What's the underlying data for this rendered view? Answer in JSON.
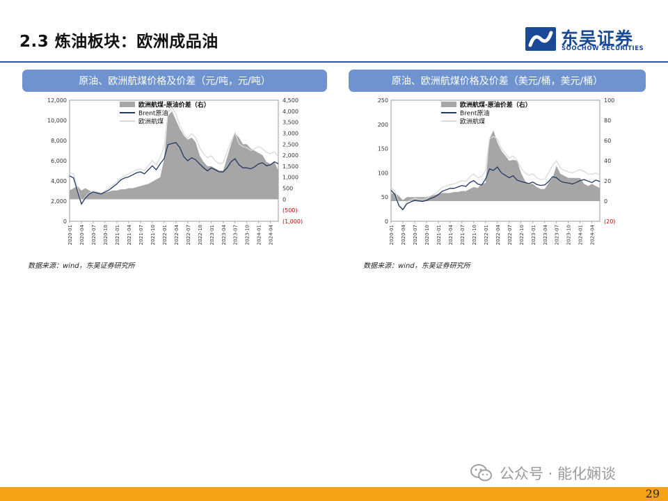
{
  "slide": {
    "title": "2.3 炼油板块：欧洲成品油",
    "page_number": "29"
  },
  "logo": {
    "name_cn": "东吴证券",
    "name_en": "SOOCHOW SECURITIES",
    "colors": {
      "primary": "#1a4a96"
    }
  },
  "watermark": {
    "text": "公众号 · 能化娴谈",
    "icon": "wechat-icon"
  },
  "colors": {
    "accent": "#2c5aa0",
    "panel_header": "#6f93cf",
    "footer": "#f5a216",
    "spread_area": "#a6a6a6",
    "brent_line": "#1f3864",
    "jet_line": "#d9d9d9",
    "negative_tick": "#c00000"
  },
  "panels": [
    {
      "header": "原油、欧洲航煤价格及价差（元/吨，元/吨）",
      "source": "数据来源：wind，东吴证券研究所"
    },
    {
      "header": "原油、欧洲航煤价格及价差（美元/桶，美元/桶）",
      "source": "数据来源：wind，东吴证券研究所"
    }
  ],
  "chart_data": [
    {
      "type": "line",
      "title": "原油、欧洲航煤价格及价差（元/吨，元/吨）",
      "x_ticks": [
        "2020-01",
        "2020-04",
        "2020-07",
        "2020-10",
        "2021-01",
        "2021-04",
        "2021-07",
        "2021-10",
        "2022-01",
        "2022-04",
        "2022-07",
        "2022-10",
        "2023-01",
        "2023-04",
        "2023-07",
        "2023-10",
        "2024-01",
        "2024-04"
      ],
      "left_axis": {
        "ylim": [
          0,
          12000
        ],
        "ticks": [
          "0",
          "2,000",
          "4,000",
          "6,000",
          "8,000",
          "10,000",
          "12,000"
        ]
      },
      "right_axis": {
        "ylim": [
          -1000,
          4500
        ],
        "ticks": [
          "(1,000)",
          "(500)",
          "0",
          "500",
          "1,000",
          "1,500",
          "2,000",
          "2,500",
          "3,000",
          "3,500",
          "4,000",
          "4,500"
        ]
      },
      "legend": [
        "欧洲航煤-原油价差（右）",
        "Brent原油",
        "欧洲航煤"
      ],
      "x_months": [
        0,
        1,
        2,
        3,
        4,
        5,
        6,
        7,
        8,
        9,
        10,
        11,
        12,
        13,
        14,
        15,
        16,
        17,
        18,
        19,
        20,
        21,
        22,
        23,
        24,
        25,
        26,
        27,
        28,
        29,
        30,
        31,
        32,
        33,
        34,
        35,
        36,
        37,
        38,
        39,
        40,
        41,
        42,
        43,
        44,
        45,
        46,
        47,
        48,
        49,
        50,
        51,
        52,
        53
      ],
      "series": [
        {
          "name": "Brent原油",
          "axis": "left",
          "values": [
            4500,
            4300,
            3000,
            1700,
            2300,
            2700,
            2900,
            2800,
            2700,
            2900,
            3100,
            3400,
            3700,
            4100,
            4300,
            4400,
            4600,
            4800,
            4900,
            4700,
            5100,
            5500,
            5100,
            5700,
            6200,
            7600,
            7700,
            7800,
            7300,
            6400,
            6000,
            6300,
            6100,
            5700,
            5300,
            5000,
            5300,
            5100,
            4900,
            4900,
            5300,
            5900,
            6200,
            5600,
            5300,
            5300,
            5200,
            5400,
            5700,
            5800,
            5500,
            5600,
            5900,
            5700
          ]
        },
        {
          "name": "欧洲航煤",
          "axis": "left",
          "values": [
            4800,
            4700,
            3300,
            1800,
            2400,
            2800,
            3000,
            2900,
            2800,
            3000,
            3300,
            3600,
            3900,
            4300,
            4500,
            4700,
            4900,
            5100,
            5200,
            5000,
            5500,
            6000,
            5600,
            6300,
            7400,
            10800,
            11300,
            10600,
            9500,
            8700,
            8200,
            8700,
            8300,
            7300,
            6700,
            6300,
            6500,
            6000,
            5700,
            5800,
            6900,
            7900,
            8800,
            7700,
            7400,
            7300,
            7000,
            7200,
            7400,
            7200,
            6800,
            6700,
            6900,
            6400
          ]
        },
        {
          "name": "欧洲航煤-原油价差（右）",
          "axis": "right",
          "values": [
            400,
            500,
            600,
            400,
            500,
            400,
            300,
            350,
            300,
            300,
            350,
            400,
            400,
            450,
            450,
            500,
            500,
            550,
            600,
            650,
            700,
            800,
            900,
            1000,
            1800,
            3800,
            4000,
            3600,
            3200,
            2900,
            2700,
            2800,
            2600,
            2000,
            1700,
            1500,
            1500,
            1400,
            1300,
            1300,
            1900,
            2500,
            3000,
            2800,
            2500,
            2500,
            2300,
            2200,
            2100,
            2000,
            1700,
            1600,
            1700,
            1300
          ]
        }
      ]
    },
    {
      "type": "line",
      "title": "原油、欧洲航煤价格及价差（美元/桶，美元/桶）",
      "x_ticks": [
        "2020-01",
        "2020-04",
        "2020-07",
        "2020-10",
        "2021-01",
        "2021-04",
        "2021-07",
        "2021-10",
        "2022-01",
        "2022-04",
        "2022-07",
        "2022-10",
        "2023-01",
        "2023-04",
        "2023-07",
        "2023-10",
        "2024-01",
        "2024-04"
      ],
      "left_axis": {
        "ylim": [
          0,
          250
        ],
        "ticks": [
          "0",
          "50",
          "100",
          "150",
          "200",
          "250"
        ]
      },
      "right_axis": {
        "ylim": [
          -20,
          100
        ],
        "ticks": [
          "(20)",
          "0",
          "20",
          "40",
          "60",
          "80",
          "100"
        ]
      },
      "legend": [
        "欧洲航煤-原油价差（右）",
        "Brent原油",
        "欧洲航煤"
      ],
      "x_months": [
        0,
        1,
        2,
        3,
        4,
        5,
        6,
        7,
        8,
        9,
        10,
        11,
        12,
        13,
        14,
        15,
        16,
        17,
        18,
        19,
        20,
        21,
        22,
        23,
        24,
        25,
        26,
        27,
        28,
        29,
        30,
        31,
        32,
        33,
        34,
        35,
        36,
        37,
        38,
        39,
        40,
        41,
        42,
        43,
        44,
        45,
        46,
        47,
        48,
        49,
        50,
        51,
        52,
        53
      ],
      "series": [
        {
          "name": "Brent原油",
          "axis": "left",
          "values": [
            64,
            55,
            32,
            24,
            36,
            40,
            43,
            42,
            41,
            43,
            47,
            50,
            55,
            62,
            65,
            68,
            68,
            71,
            74,
            72,
            80,
            84,
            77,
            75,
            87,
            108,
            105,
            112,
            100,
            95,
            90,
            94,
            85,
            82,
            80,
            78,
            81,
            76,
            74,
            75,
            82,
            92,
            90,
            83,
            80,
            79,
            77,
            80,
            84,
            86,
            83,
            80,
            85,
            82
          ]
        },
        {
          "name": "欧洲航煤",
          "axis": "left",
          "values": [
            70,
            62,
            36,
            26,
            40,
            44,
            47,
            46,
            45,
            47,
            52,
            56,
            62,
            70,
            73,
            76,
            77,
            80,
            84,
            82,
            92,
            98,
            90,
            92,
            105,
            170,
            175,
            170,
            150,
            140,
            130,
            135,
            125,
            110,
            100,
            95,
            98,
            90,
            86,
            87,
            100,
            115,
            125,
            110,
            105,
            102,
            100,
            103,
            107,
            103,
            98,
            97,
            100,
            95
          ]
        },
        {
          "name": "欧洲航煤-原油价差（右）",
          "axis": "right",
          "values": [
            7,
            8,
            5,
            1,
            4,
            4,
            4,
            4,
            4,
            4,
            5,
            6,
            7,
            8,
            8,
            8,
            9,
            9,
            10,
            10,
            12,
            14,
            13,
            17,
            18,
            62,
            70,
            58,
            50,
            45,
            40,
            41,
            40,
            28,
            20,
            17,
            17,
            14,
            12,
            12,
            18,
            23,
            35,
            27,
            25,
            23,
            23,
            23,
            23,
            17,
            15,
            17,
            15,
            13
          ]
        }
      ]
    }
  ]
}
